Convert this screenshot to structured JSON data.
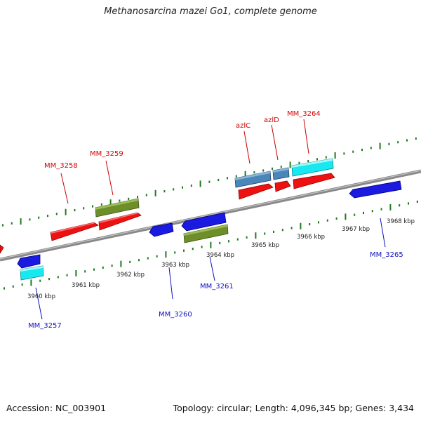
{
  "title": "Methanosarcina mazei Go1, complete genome",
  "footer": {
    "accession": "Accession: NC_003901",
    "summary": "Topology: circular; Length: 4,096,345 bp; Genes: 3,434"
  },
  "axis_ticks": [
    "3960 kbp",
    "3961 kbp",
    "3962 kbp",
    "3963 kbp",
    "3964 kbp",
    "3965 kbp",
    "3966 kbp",
    "3967 kbp",
    "3968 kbp"
  ],
  "colors": {
    "forward_label": "#d40000",
    "reverse_label": "#1010c0",
    "cds_red": "#ee1111",
    "cds_blue": "#1a1ae0",
    "cds_olive": "#6e8e2a",
    "cds_steel": "#4a86b8",
    "cds_cyan": "#18e8f0",
    "backbone": "#8a8a8a",
    "tick": "#1f7a1f"
  },
  "labels": {
    "MM_3258": "MM_3258",
    "MM_3259": "MM_3259",
    "azlC": "azlC",
    "azlD": "azlD",
    "MM_3264": "MM_3264",
    "MM_3257": "MM_3257",
    "MM_3260": "MM_3260",
    "MM_3261": "MM_3261",
    "MM_3265": "MM_3265"
  }
}
